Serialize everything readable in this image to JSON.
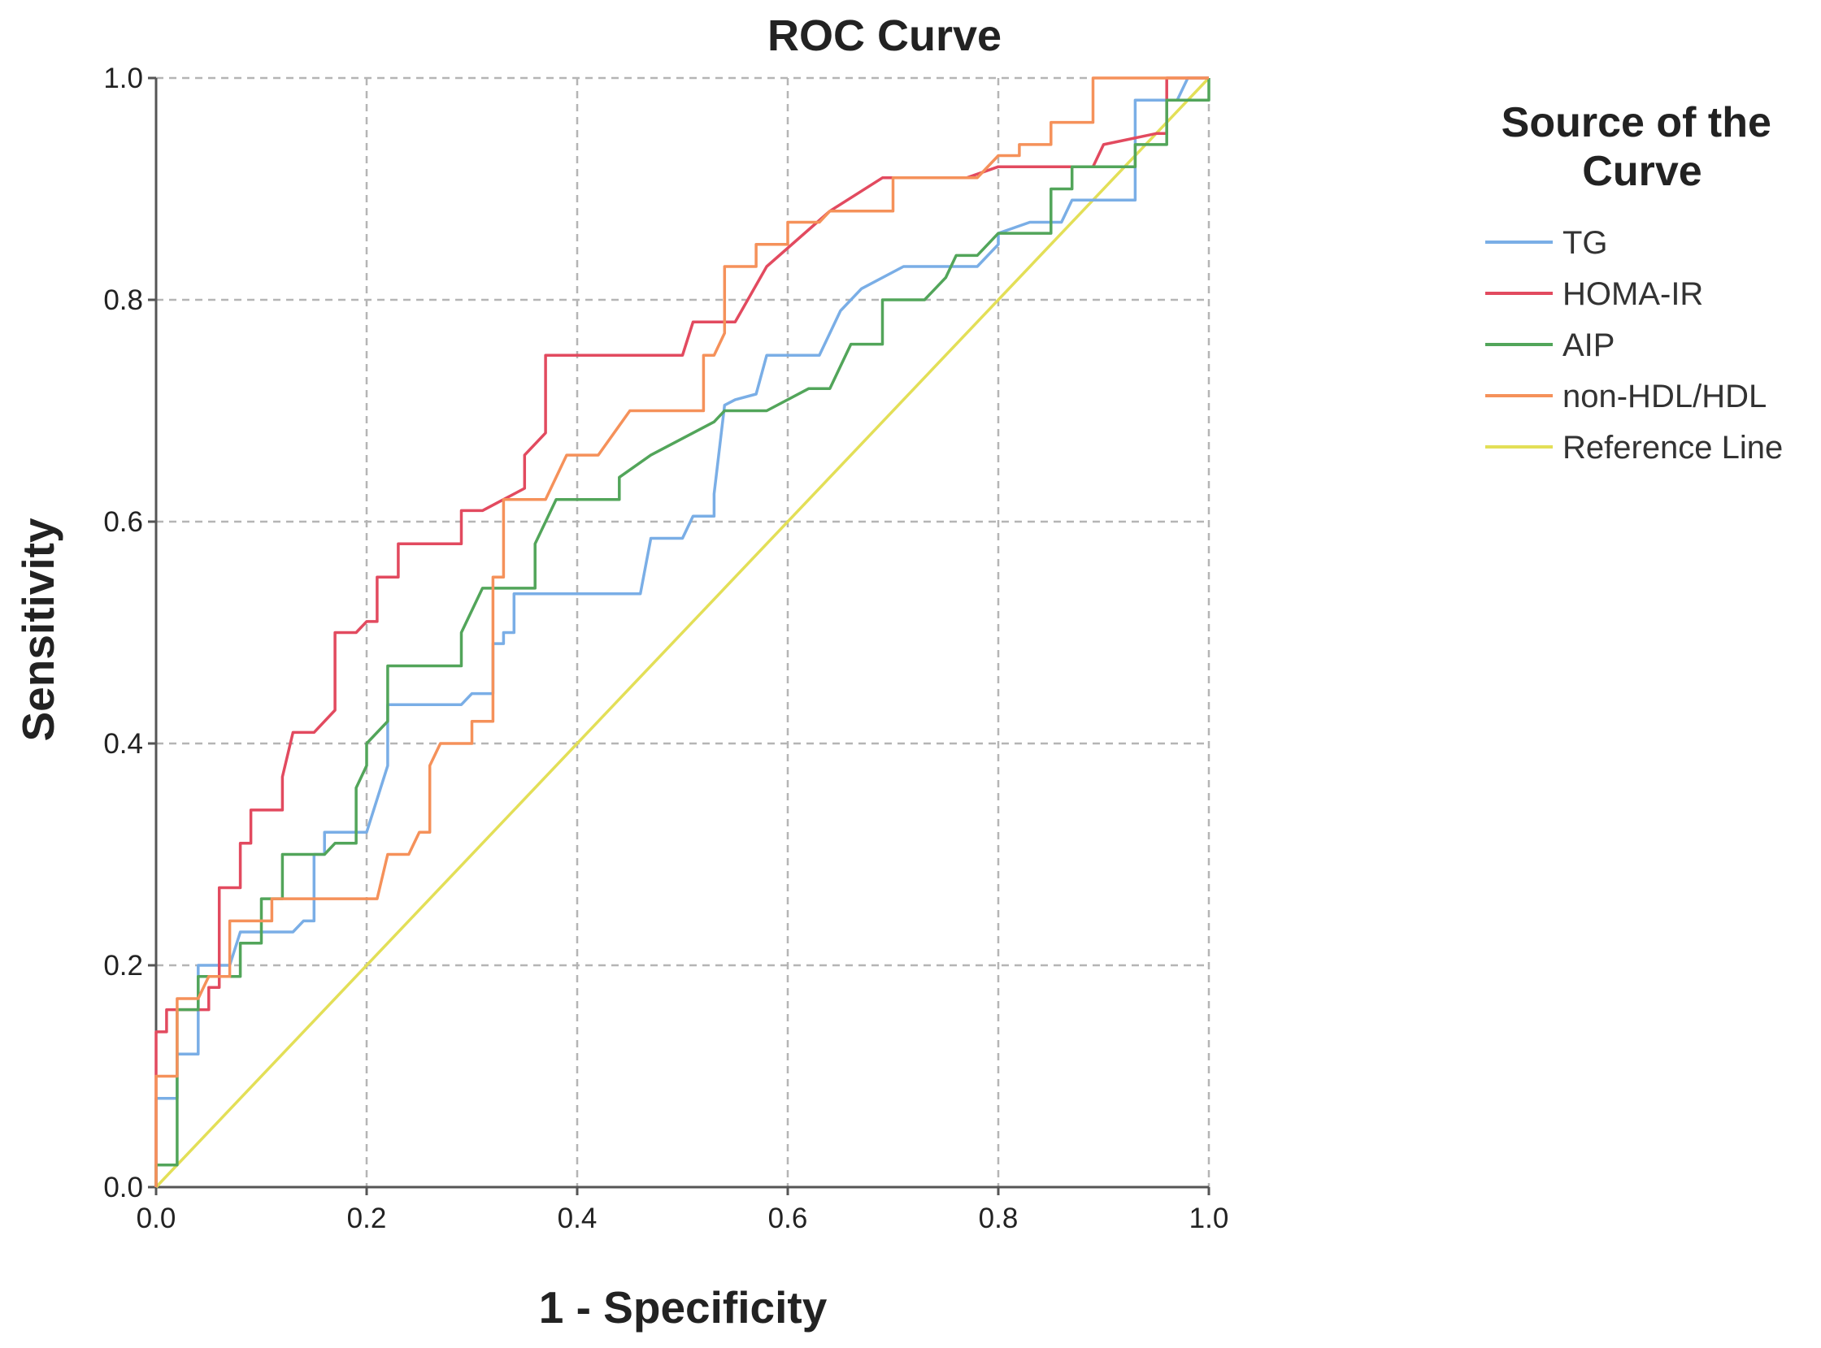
{
  "chart_data": {
    "type": "line",
    "title": "ROC Curve",
    "xlabel": "1 - Specificity",
    "ylabel": "Sensitivity",
    "xlim": [
      0,
      1
    ],
    "ylim": [
      0,
      1
    ],
    "grid": true,
    "x_ticks": [
      "0.0",
      "0.2",
      "0.4",
      "0.6",
      "0.8",
      "1.0"
    ],
    "y_ticks": [
      "0.0",
      "0.2",
      "0.4",
      "0.6",
      "0.8",
      "1.0"
    ],
    "legend_title": "Source of the Curve",
    "legend_position": "right",
    "series": [
      {
        "name": "TG",
        "color": "#7aaee6",
        "points": [
          [
            0,
            0
          ],
          [
            0,
            0.08
          ],
          [
            0.02,
            0.08
          ],
          [
            0.02,
            0.12
          ],
          [
            0.04,
            0.12
          ],
          [
            0.04,
            0.2
          ],
          [
            0.07,
            0.2
          ],
          [
            0.08,
            0.23
          ],
          [
            0.13,
            0.23
          ],
          [
            0.14,
            0.24
          ],
          [
            0.15,
            0.24
          ],
          [
            0.15,
            0.3
          ],
          [
            0.16,
            0.3
          ],
          [
            0.16,
            0.32
          ],
          [
            0.2,
            0.32
          ],
          [
            0.22,
            0.38
          ],
          [
            0.22,
            0.435
          ],
          [
            0.29,
            0.435
          ],
          [
            0.3,
            0.445
          ],
          [
            0.32,
            0.445
          ],
          [
            0.32,
            0.49
          ],
          [
            0.33,
            0.49
          ],
          [
            0.33,
            0.5
          ],
          [
            0.34,
            0.5
          ],
          [
            0.34,
            0.535
          ],
          [
            0.46,
            0.535
          ],
          [
            0.47,
            0.585
          ],
          [
            0.5,
            0.585
          ],
          [
            0.51,
            0.605
          ],
          [
            0.53,
            0.605
          ],
          [
            0.53,
            0.625
          ],
          [
            0.54,
            0.705
          ],
          [
            0.55,
            0.71
          ],
          [
            0.57,
            0.715
          ],
          [
            0.58,
            0.75
          ],
          [
            0.63,
            0.75
          ],
          [
            0.65,
            0.79
          ],
          [
            0.67,
            0.81
          ],
          [
            0.71,
            0.83
          ],
          [
            0.78,
            0.83
          ],
          [
            0.8,
            0.85
          ],
          [
            0.8,
            0.86
          ],
          [
            0.83,
            0.87
          ],
          [
            0.86,
            0.87
          ],
          [
            0.87,
            0.89
          ],
          [
            0.9,
            0.89
          ],
          [
            0.93,
            0.89
          ],
          [
            0.93,
            0.98
          ],
          [
            0.97,
            0.98
          ],
          [
            0.98,
            1
          ],
          [
            1,
            1
          ]
        ]
      },
      {
        "name": "HOMA-IR",
        "color": "#e24a5f",
        "points": [
          [
            0,
            0
          ],
          [
            0,
            0.14
          ],
          [
            0.01,
            0.14
          ],
          [
            0.01,
            0.16
          ],
          [
            0.05,
            0.16
          ],
          [
            0.05,
            0.18
          ],
          [
            0.06,
            0.18
          ],
          [
            0.06,
            0.27
          ],
          [
            0.08,
            0.27
          ],
          [
            0.08,
            0.31
          ],
          [
            0.09,
            0.31
          ],
          [
            0.09,
            0.34
          ],
          [
            0.12,
            0.34
          ],
          [
            0.12,
            0.37
          ],
          [
            0.13,
            0.41
          ],
          [
            0.15,
            0.41
          ],
          [
            0.17,
            0.43
          ],
          [
            0.17,
            0.5
          ],
          [
            0.19,
            0.5
          ],
          [
            0.2,
            0.51
          ],
          [
            0.21,
            0.51
          ],
          [
            0.21,
            0.55
          ],
          [
            0.23,
            0.55
          ],
          [
            0.23,
            0.58
          ],
          [
            0.29,
            0.58
          ],
          [
            0.29,
            0.61
          ],
          [
            0.31,
            0.61
          ],
          [
            0.33,
            0.62
          ],
          [
            0.35,
            0.63
          ],
          [
            0.35,
            0.66
          ],
          [
            0.37,
            0.68
          ],
          [
            0.37,
            0.75
          ],
          [
            0.5,
            0.75
          ],
          [
            0.51,
            0.78
          ],
          [
            0.55,
            0.78
          ],
          [
            0.58,
            0.83
          ],
          [
            0.64,
            0.88
          ],
          [
            0.69,
            0.91
          ],
          [
            0.77,
            0.91
          ],
          [
            0.8,
            0.92
          ],
          [
            0.89,
            0.92
          ],
          [
            0.9,
            0.94
          ],
          [
            0.95,
            0.95
          ],
          [
            0.96,
            0.95
          ],
          [
            0.96,
            1
          ],
          [
            1,
            1
          ]
        ]
      },
      {
        "name": "AIP",
        "color": "#52a55a",
        "points": [
          [
            0,
            0
          ],
          [
            0,
            0.02
          ],
          [
            0.02,
            0.02
          ],
          [
            0.02,
            0.16
          ],
          [
            0.04,
            0.16
          ],
          [
            0.04,
            0.19
          ],
          [
            0.06,
            0.19
          ],
          [
            0.08,
            0.19
          ],
          [
            0.08,
            0.22
          ],
          [
            0.1,
            0.22
          ],
          [
            0.1,
            0.26
          ],
          [
            0.12,
            0.26
          ],
          [
            0.12,
            0.3
          ],
          [
            0.16,
            0.3
          ],
          [
            0.17,
            0.31
          ],
          [
            0.19,
            0.31
          ],
          [
            0.19,
            0.36
          ],
          [
            0.2,
            0.38
          ],
          [
            0.2,
            0.4
          ],
          [
            0.22,
            0.42
          ],
          [
            0.22,
            0.47
          ],
          [
            0.29,
            0.47
          ],
          [
            0.29,
            0.5
          ],
          [
            0.31,
            0.54
          ],
          [
            0.36,
            0.54
          ],
          [
            0.36,
            0.58
          ],
          [
            0.38,
            0.62
          ],
          [
            0.44,
            0.62
          ],
          [
            0.44,
            0.64
          ],
          [
            0.47,
            0.66
          ],
          [
            0.53,
            0.69
          ],
          [
            0.54,
            0.7
          ],
          [
            0.58,
            0.7
          ],
          [
            0.62,
            0.72
          ],
          [
            0.64,
            0.72
          ],
          [
            0.66,
            0.76
          ],
          [
            0.69,
            0.76
          ],
          [
            0.69,
            0.8
          ],
          [
            0.73,
            0.8
          ],
          [
            0.75,
            0.82
          ],
          [
            0.76,
            0.84
          ],
          [
            0.78,
            0.84
          ],
          [
            0.8,
            0.86
          ],
          [
            0.85,
            0.86
          ],
          [
            0.85,
            0.9
          ],
          [
            0.87,
            0.9
          ],
          [
            0.87,
            0.92
          ],
          [
            0.93,
            0.92
          ],
          [
            0.93,
            0.94
          ],
          [
            0.96,
            0.94
          ],
          [
            0.96,
            0.98
          ],
          [
            1,
            0.98
          ],
          [
            1,
            1
          ]
        ]
      },
      {
        "name": "non-HDL/HDL",
        "color": "#f5915a",
        "points": [
          [
            0,
            0
          ],
          [
            0,
            0.1
          ],
          [
            0.02,
            0.1
          ],
          [
            0.02,
            0.17
          ],
          [
            0.04,
            0.17
          ],
          [
            0.05,
            0.19
          ],
          [
            0.07,
            0.19
          ],
          [
            0.07,
            0.24
          ],
          [
            0.11,
            0.24
          ],
          [
            0.11,
            0.26
          ],
          [
            0.21,
            0.26
          ],
          [
            0.22,
            0.3
          ],
          [
            0.24,
            0.3
          ],
          [
            0.25,
            0.32
          ],
          [
            0.26,
            0.32
          ],
          [
            0.26,
            0.38
          ],
          [
            0.27,
            0.4
          ],
          [
            0.3,
            0.4
          ],
          [
            0.3,
            0.42
          ],
          [
            0.32,
            0.42
          ],
          [
            0.32,
            0.55
          ],
          [
            0.33,
            0.55
          ],
          [
            0.33,
            0.62
          ],
          [
            0.37,
            0.62
          ],
          [
            0.39,
            0.66
          ],
          [
            0.42,
            0.66
          ],
          [
            0.45,
            0.7
          ],
          [
            0.52,
            0.7
          ],
          [
            0.52,
            0.75
          ],
          [
            0.53,
            0.75
          ],
          [
            0.54,
            0.77
          ],
          [
            0.54,
            0.83
          ],
          [
            0.57,
            0.83
          ],
          [
            0.57,
            0.85
          ],
          [
            0.6,
            0.85
          ],
          [
            0.6,
            0.87
          ],
          [
            0.63,
            0.87
          ],
          [
            0.64,
            0.88
          ],
          [
            0.7,
            0.88
          ],
          [
            0.7,
            0.91
          ],
          [
            0.78,
            0.91
          ],
          [
            0.8,
            0.93
          ],
          [
            0.82,
            0.93
          ],
          [
            0.82,
            0.94
          ],
          [
            0.85,
            0.94
          ],
          [
            0.85,
            0.96
          ],
          [
            0.89,
            0.96
          ],
          [
            0.89,
            1
          ],
          [
            1,
            1
          ]
        ]
      },
      {
        "name": "Reference Line",
        "color": "#e3df57",
        "points": [
          [
            0,
            0
          ],
          [
            1,
            1
          ]
        ]
      }
    ]
  }
}
